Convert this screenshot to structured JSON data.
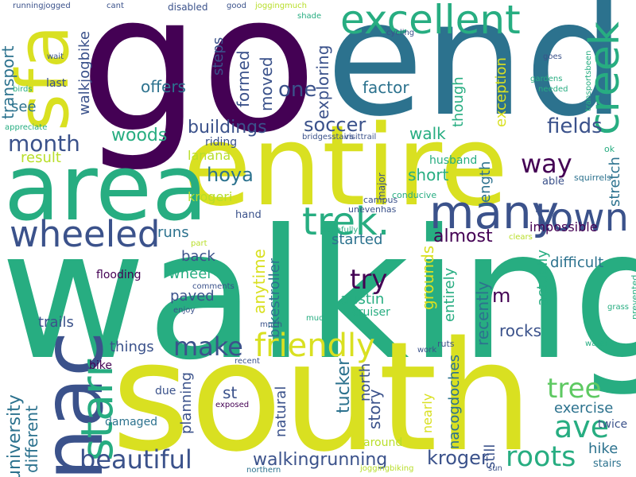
{
  "palette": {
    "dark_purple": "#440154",
    "indigo": "#3b528b",
    "blue": "#2c728e",
    "teal": "#21918c",
    "green": "#27ad81",
    "lime": "#5ec962",
    "yellow": "#d9e021",
    "light_yellow": "#b8de29"
  },
  "words": [
    {
      "text": "go",
      "color": "#440154",
      "rotated": false
    },
    {
      "text": "end",
      "color": "#2c728e",
      "rotated": false
    },
    {
      "text": "walking",
      "color": "#27ad81",
      "rotated": false
    },
    {
      "text": "south",
      "color": "#d9e021",
      "rotated": false
    },
    {
      "text": "entire",
      "color": "#d9e021",
      "rotated": false
    },
    {
      "text": "area",
      "color": "#27ad81",
      "rotated": false
    },
    {
      "text": "sfa",
      "color": "#d9e021",
      "rotated": true
    },
    {
      "text": "nac",
      "color": "#3b528b",
      "rotated": true
    },
    {
      "text": "excellent",
      "color": "#27ad81",
      "rotated": false
    },
    {
      "text": "creek",
      "color": "#27ad81",
      "rotated": true
    },
    {
      "text": "many",
      "color": "#3b528b",
      "rotated": false
    },
    {
      "text": "trek.",
      "color": "#27ad81",
      "rotated": false
    },
    {
      "text": "wheeled",
      "color": "#3b528b",
      "rotated": false
    },
    {
      "text": "starr",
      "color": "#27ad81",
      "rotated": true
    },
    {
      "text": "town",
      "color": "#3b528b",
      "rotated": false
    },
    {
      "text": "ave",
      "color": "#27ad81",
      "rotated": false
    },
    {
      "text": "friendly",
      "color": "#d9e021",
      "rotated": false
    },
    {
      "text": "make",
      "color": "#3b528b",
      "rotated": false
    },
    {
      "text": "tree",
      "color": "#5ec962",
      "rotated": false
    },
    {
      "text": "roots",
      "color": "#27ad81",
      "rotated": false
    },
    {
      "text": "beautiful",
      "color": "#3b528b",
      "rotated": false
    },
    {
      "text": "month",
      "color": "#3b528b",
      "rotated": false
    },
    {
      "text": "try",
      "color": "#440154",
      "rotated": false
    },
    {
      "text": "way",
      "color": "#440154",
      "rotated": false
    },
    {
      "text": "soccer",
      "color": "#3b528b",
      "rotated": false
    },
    {
      "text": "one",
      "color": "#3b528b",
      "rotated": false
    },
    {
      "text": "fields",
      "color": "#3b528b",
      "rotated": false
    },
    {
      "text": "hoya",
      "color": "#2c728e",
      "rotated": false
    },
    {
      "text": "woods",
      "color": "#27ad81",
      "rotated": false
    },
    {
      "text": "buildings",
      "color": "#3b528b",
      "rotated": false
    },
    {
      "text": "walkingrunning",
      "color": "#3b528b",
      "rotated": false
    },
    {
      "text": "kroger",
      "color": "#3b528b",
      "rotated": false
    },
    {
      "text": "almost",
      "color": "#440154",
      "rotated": false
    },
    {
      "text": "walk",
      "color": "#27ad81",
      "rotated": false
    },
    {
      "text": "short",
      "color": "#27ad81",
      "rotated": false
    },
    {
      "text": "offers",
      "color": "#2c728e",
      "rotated": false
    },
    {
      "text": "factor",
      "color": "#2c728e",
      "rotated": false
    },
    {
      "text": "austin",
      "color": "#27ad81",
      "rotated": false
    },
    {
      "text": "things",
      "color": "#3b528b",
      "rotated": false
    },
    {
      "text": "rocks",
      "color": "#3b528b",
      "rotated": false
    },
    {
      "text": "exercise",
      "color": "#2c728e",
      "rotated": false
    },
    {
      "text": "hike",
      "color": "#2c728e",
      "rotated": false
    },
    {
      "text": "st",
      "color": "#3b528b",
      "rotated": false
    },
    {
      "text": "runs",
      "color": "#2c728e",
      "rotated": false
    },
    {
      "text": "back",
      "color": "#3b528b",
      "rotated": false
    },
    {
      "text": "wheel",
      "color": "#27ad81",
      "rotated": false
    },
    {
      "text": "paved",
      "color": "#3b528b",
      "rotated": false
    },
    {
      "text": "result",
      "color": "#b8de29",
      "rotated": false
    },
    {
      "text": "started",
      "color": "#2c728e",
      "rotated": false
    },
    {
      "text": "lanana",
      "color": "#b8de29",
      "rotated": false
    },
    {
      "text": "krogeri",
      "color": "#b8de29",
      "rotated": false
    },
    {
      "text": "difficult",
      "color": "#2c728e",
      "rotated": false
    },
    {
      "text": "impossible",
      "color": "#440154",
      "rotated": false
    },
    {
      "text": "see",
      "color": "#2c728e",
      "rotated": false
    },
    {
      "text": "trails",
      "color": "#3b528b",
      "rotated": false
    },
    {
      "text": "m",
      "color": "#440154",
      "rotated": false
    },
    {
      "text": "tucker",
      "color": "#2c728e",
      "rotated": true
    },
    {
      "text": "university",
      "color": "#2c728e",
      "rotated": true
    },
    {
      "text": "different",
      "color": "#2c728e",
      "rotated": true
    },
    {
      "text": "transport",
      "color": "#2c728e",
      "rotated": true
    },
    {
      "text": "walkjogbike",
      "color": "#3b528b",
      "rotated": true
    },
    {
      "text": "steps",
      "color": "#3b528b",
      "rotated": true
    },
    {
      "text": "formed",
      "color": "#3b528b",
      "rotated": true
    },
    {
      "text": "moved",
      "color": "#3b528b",
      "rotated": true
    },
    {
      "text": "exploring",
      "color": "#3b528b",
      "rotated": true
    },
    {
      "text": "though",
      "color": "#27ad81",
      "rotated": true
    },
    {
      "text": "exception",
      "color": "#d9e021",
      "rotated": true
    },
    {
      "text": "length",
      "color": "#2c728e",
      "rotated": true
    },
    {
      "text": "stretch",
      "color": "#2c728e",
      "rotated": true
    },
    {
      "text": "anytime",
      "color": "#d9e021",
      "rotated": true
    },
    {
      "text": "bikestroller",
      "color": "#2c728e",
      "rotated": true
    },
    {
      "text": "grounds",
      "color": "#d9e021",
      "rotated": true
    },
    {
      "text": "entirely",
      "color": "#27ad81",
      "rotated": true
    },
    {
      "text": "actually",
      "color": "#27ad81",
      "rotated": true
    },
    {
      "text": "recently",
      "color": "#2c728e",
      "rotated": true
    },
    {
      "text": "nacogdoches",
      "color": "#2c728e",
      "rotated": true
    },
    {
      "text": "story",
      "color": "#3b528b",
      "rotated": true
    },
    {
      "text": "north",
      "color": "#3b528b",
      "rotated": true
    },
    {
      "text": "natural",
      "color": "#3b528b",
      "rotated": true
    },
    {
      "text": "nearly",
      "color": "#d9e021",
      "rotated": true
    },
    {
      "text": "still",
      "color": "#3b528b",
      "rotated": true
    },
    {
      "text": "planning",
      "color": "#3b528b",
      "rotated": true
    },
    {
      "text": "last",
      "color": "#3b528b",
      "rotated": false
    },
    {
      "text": "riding",
      "color": "#3b528b",
      "rotated": false
    },
    {
      "text": "husband",
      "color": "#27ad81",
      "rotated": false
    },
    {
      "text": "able",
      "color": "#3b528b",
      "rotated": false
    },
    {
      "text": "hand",
      "color": "#3b528b",
      "rotated": false
    },
    {
      "text": "flooding",
      "color": "#440154",
      "rotated": false
    },
    {
      "text": "cruiser",
      "color": "#27ad81",
      "rotated": false
    },
    {
      "text": "due",
      "color": "#3b528b",
      "rotated": false
    },
    {
      "text": "damaged",
      "color": "#2c728e",
      "rotated": false
    },
    {
      "text": "around",
      "color": "#b8de29",
      "rotated": false
    },
    {
      "text": "bike",
      "color": "#440154",
      "rotated": false
    },
    {
      "text": "stairs",
      "color": "#2c728e",
      "rotated": false
    },
    {
      "text": "twice",
      "color": "#3b528b",
      "rotated": false
    },
    {
      "text": "major",
      "color": "#3b528b",
      "rotated": true
    },
    {
      "text": "conducive",
      "color": "#27ad81",
      "rotated": false
    },
    {
      "text": "squirrels",
      "color": "#2c728e",
      "rotated": false
    },
    {
      "text": "ok",
      "color": "#27ad81",
      "rotated": false
    },
    {
      "text": "unevenhas",
      "color": "#3b528b",
      "rotated": false
    },
    {
      "text": "campus",
      "color": "#3b528b",
      "rotated": false
    },
    {
      "text": "hopefully",
      "color": "#27ad81",
      "rotated": false
    },
    {
      "text": "part",
      "color": "#b8de29",
      "rotated": false
    },
    {
      "text": "clears",
      "color": "#b8de29",
      "rotated": false
    },
    {
      "text": "comments",
      "color": "#3b528b",
      "rotated": false
    },
    {
      "text": "enjoy",
      "color": "#3b528b",
      "rotated": false
    },
    {
      "text": "much",
      "color": "#3b528b",
      "rotated": false
    },
    {
      "text": "mud",
      "color": "#27ad81",
      "rotated": false
    },
    {
      "text": "ruts",
      "color": "#3b528b",
      "rotated": false
    },
    {
      "text": "work",
      "color": "#3b528b",
      "rotated": false
    },
    {
      "text": "recent",
      "color": "#3b528b",
      "rotated": false
    },
    {
      "text": "exposed",
      "color": "#440154",
      "rotated": false
    },
    {
      "text": "grass",
      "color": "#27ad81",
      "rotated": false
    },
    {
      "text": "water",
      "color": "#27ad81",
      "rotated": false
    },
    {
      "text": "prevented",
      "color": "#27ad81",
      "rotated": true
    },
    {
      "text": "northern",
      "color": "#2c728e",
      "rotated": false
    },
    {
      "text": "joggingbiking",
      "color": "#b8de29",
      "rotated": false
    },
    {
      "text": "sun",
      "color": "#3b528b",
      "rotated": false
    },
    {
      "text": "runningjogged",
      "color": "#3b528b",
      "rotated": false
    },
    {
      "text": "cant",
      "color": "#3b528b",
      "rotated": false
    },
    {
      "text": "disabled",
      "color": "#3b528b",
      "rotated": false
    },
    {
      "text": "good",
      "color": "#3b528b",
      "rotated": false
    },
    {
      "text": "joggingmuch",
      "color": "#b8de29",
      "rotated": false
    },
    {
      "text": "shade",
      "color": "#27ad81",
      "rotated": false
    },
    {
      "text": "cycling",
      "color": "#3b528b",
      "rotated": false
    },
    {
      "text": "wait",
      "color": "#3b528b",
      "rotated": false
    },
    {
      "text": "goes",
      "color": "#3b528b",
      "rotated": false
    },
    {
      "text": "transportsbeen",
      "color": "#27ad81",
      "rotated": true
    },
    {
      "text": "gardens",
      "color": "#27ad81",
      "rotated": false
    },
    {
      "text": "needed",
      "color": "#27ad81",
      "rotated": false
    },
    {
      "text": "birds",
      "color": "#27ad81",
      "rotated": false
    },
    {
      "text": "appreciate",
      "color": "#27ad81",
      "rotated": false
    },
    {
      "text": "bridgesstairs",
      "color": "#3b528b",
      "rotated": false
    },
    {
      "text": "visittrail",
      "color": "#3b528b",
      "rotated": false
    }
  ]
}
